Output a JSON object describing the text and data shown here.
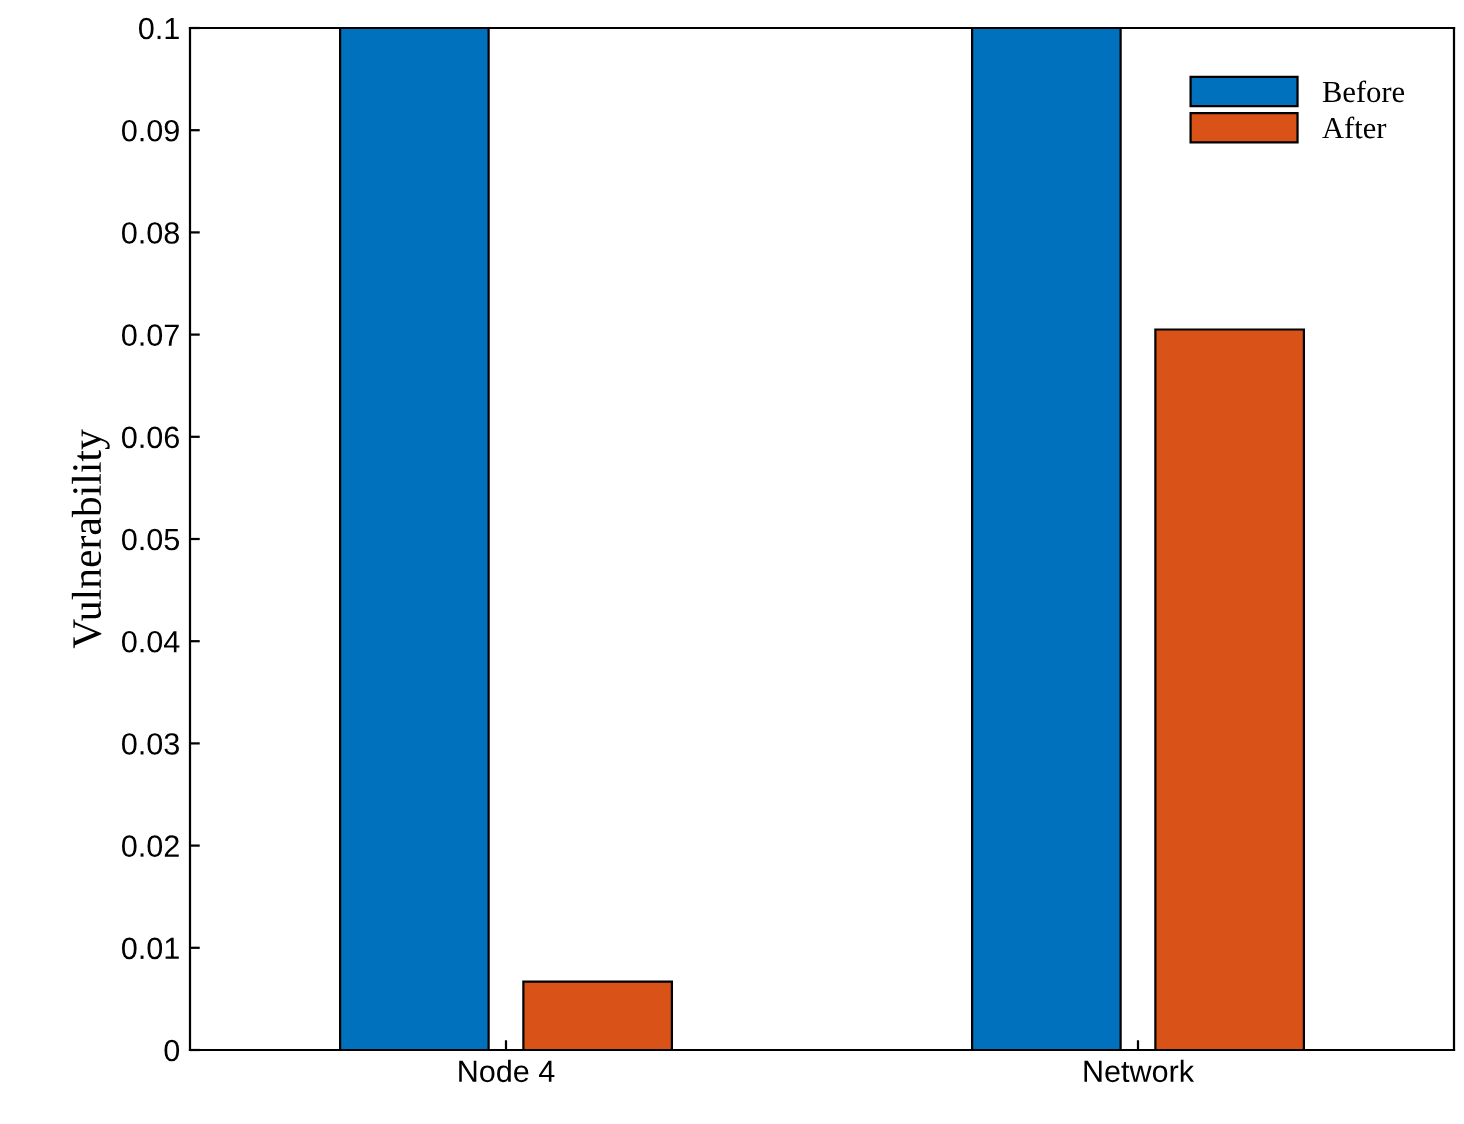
{
  "chart_data": {
    "type": "bar",
    "ylabel": "Vulnerability",
    "categories": [
      "Node 4",
      "Network"
    ],
    "series": [
      {
        "name": "Before",
        "color": "#0072bd",
        "values": [
          0.1,
          0.1
        ]
      },
      {
        "name": "After",
        "color": "#d95319",
        "values": [
          0.0067,
          0.0705
        ]
      }
    ],
    "ylim": [
      0,
      0.1
    ],
    "yticks": [
      0,
      0.01,
      0.02,
      0.03,
      0.04,
      0.05,
      0.06,
      0.07,
      0.08,
      0.09,
      0.1
    ],
    "grid": false,
    "legend": "top right"
  }
}
